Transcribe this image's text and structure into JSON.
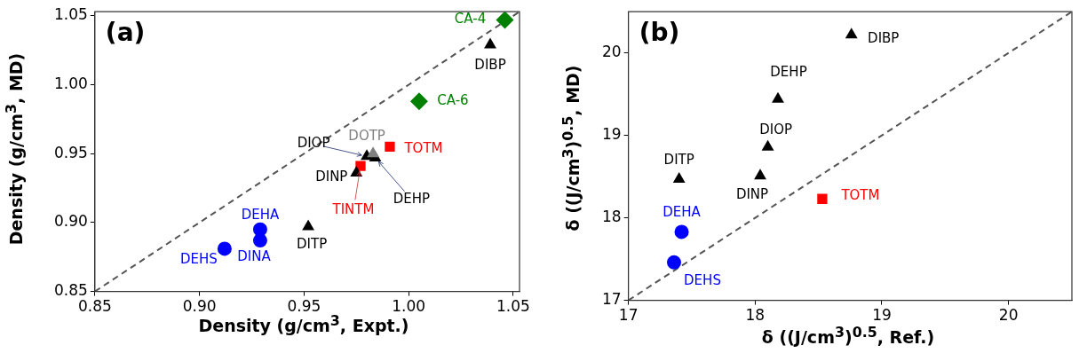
{
  "chart_data": [
    {
      "type": "scatter",
      "xlabel": "Density (g/cm$^{3}$, Expt.)",
      "ylabel": "Density (g/cm$^{3}$, MD)",
      "annotations": [
        "(a)"
      ],
      "xlim": [
        0.85,
        1.053
      ],
      "ylim": [
        0.85,
        1.053
      ],
      "xticks": [
        0.85,
        {
          "value": 0.9,
          "label": "0.90"
        },
        0.95,
        {
          "value": 1.0,
          "label": "1.00"
        },
        1.05
      ],
      "yticks": [
        0.85,
        {
          "value": 0.9,
          "label": "0.90"
        },
        0.95,
        {
          "value": 1.0,
          "label": "1.00"
        },
        1.05
      ],
      "series": [
        {
          "name": "CA-4",
          "color": "#008000",
          "marker": "diamond",
          "x": [
            1.046
          ],
          "values": [
            1.047
          ]
        },
        {
          "name": "CA-6",
          "color": "#008000",
          "marker": "diamond",
          "x": [
            1.005
          ],
          "values": [
            0.988
          ]
        },
        {
          "name": "DIBP",
          "color": "#000000",
          "marker": "triangle",
          "x": [
            1.039
          ],
          "values": [
            1.029
          ]
        },
        {
          "name": "TOTM",
          "color": "#ff0000",
          "marker": "square",
          "x": [
            0.991
          ],
          "values": [
            0.955
          ]
        },
        {
          "name": "TINTM",
          "color": "#ff0000",
          "marker": "square",
          "x": [
            0.977
          ],
          "values": [
            0.941
          ]
        },
        {
          "name": "DIOP",
          "color": "#000000",
          "marker": "triangle",
          "x": [
            0.98
          ],
          "values": [
            0.948
          ]
        },
        {
          "name": "DEHP",
          "color": "#000000",
          "marker": "triangle",
          "x": [
            0.984
          ],
          "values": [
            0.947
          ]
        },
        {
          "name": "DOTP",
          "color": "#808080",
          "marker": "triangle",
          "x": [
            0.983
          ],
          "values": [
            0.95
          ]
        },
        {
          "name": "DINP",
          "color": "#000000",
          "marker": "triangle",
          "x": [
            0.975
          ],
          "values": [
            0.936
          ]
        },
        {
          "name": "DITP",
          "color": "#000000",
          "marker": "triangle",
          "x": [
            0.952
          ],
          "values": [
            0.897
          ]
        },
        {
          "name": "DEHA",
          "color": "#0000ff",
          "marker": "circle",
          "x": [
            0.929
          ],
          "values": [
            0.895
          ]
        },
        {
          "name": "DINA",
          "color": "#0000ff",
          "marker": "circle",
          "x": [
            0.929
          ],
          "values": [
            0.887
          ]
        },
        {
          "name": "DEHS",
          "color": "#0000ff",
          "marker": "circle",
          "x": [
            0.912
          ],
          "values": [
            0.881
          ]
        },
        {
          "type": "line",
          "color": "#555555",
          "line_style": "dashed",
          "marker": "none",
          "x": [
            0.85,
            1.053
          ],
          "values": [
            0.85,
            1.053
          ]
        }
      ]
    },
    {
      "type": "scatter",
      "xlabel": "δ ((J/cm$^{3}$)$^{0.5}$, Ref.)",
      "ylabel": "δ ((J/cm$^{3}$)$^{0.5}$, MD)",
      "annotations": [
        "(b)"
      ],
      "xlim": [
        17,
        20.5
      ],
      "ylim": [
        17,
        20.5
      ],
      "xticks": [
        17,
        18,
        19,
        20
      ],
      "yticks": [
        17,
        18,
        19,
        20
      ],
      "series": [
        {
          "name": "DIBP",
          "color": "#000000",
          "marker": "triangle",
          "x": [
            18.76
          ],
          "values": [
            20.22
          ]
        },
        {
          "name": "DEHP",
          "color": "#000000",
          "marker": "triangle",
          "x": [
            18.18
          ],
          "values": [
            19.44
          ]
        },
        {
          "name": "DIOP",
          "color": "#000000",
          "marker": "triangle",
          "x": [
            18.1
          ],
          "values": [
            18.86
          ]
        },
        {
          "name": "DINP",
          "color": "#000000",
          "marker": "triangle",
          "x": [
            18.04
          ],
          "values": [
            18.51
          ]
        },
        {
          "name": "DITP",
          "color": "#000000",
          "marker": "triangle",
          "x": [
            17.4
          ],
          "values": [
            18.47
          ]
        },
        {
          "name": "TOTM",
          "color": "#ff0000",
          "marker": "square",
          "x": [
            18.53
          ],
          "values": [
            18.23
          ]
        },
        {
          "name": "DEHA",
          "color": "#0000ff",
          "marker": "circle",
          "x": [
            17.42
          ],
          "values": [
            17.83
          ]
        },
        {
          "name": "DEHS",
          "color": "#0000ff",
          "marker": "circle",
          "x": [
            17.36
          ],
          "values": [
            17.46
          ]
        },
        {
          "type": "line",
          "color": "#555555",
          "line_style": "dashed",
          "marker": "none",
          "x": [
            17,
            20.5
          ],
          "values": [
            17,
            20.5
          ]
        }
      ]
    }
  ]
}
